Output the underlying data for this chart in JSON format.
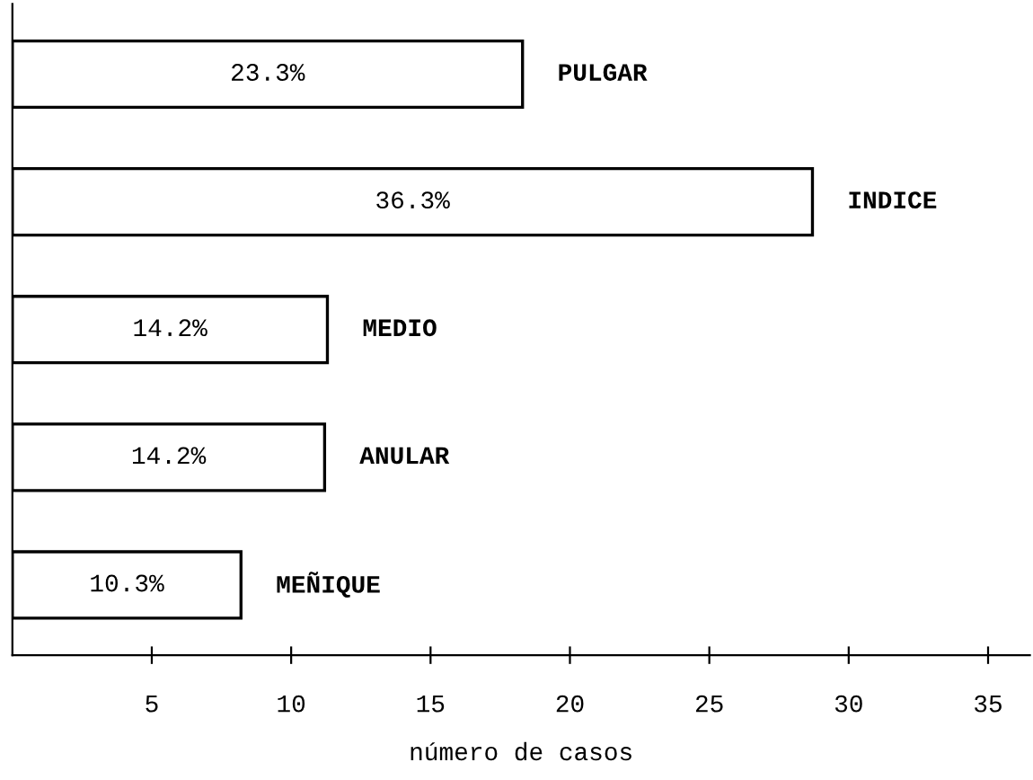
{
  "chart_data": {
    "type": "bar",
    "orientation": "horizontal",
    "xlabel": "número de casos",
    "categories": [
      "PULGAR",
      "INDICE",
      "MEDIO",
      "ANULAR",
      "MEÑIQUE"
    ],
    "values": [
      18.3,
      28.7,
      11.3,
      11.2,
      8.2
    ],
    "annotations": [
      "23.3%",
      "36.3%",
      "14.2%",
      "14.2%",
      "10.3%"
    ],
    "color": "#ffffff",
    "xlim": [
      0,
      36.5
    ],
    "xticks": [
      5,
      10,
      15,
      20,
      25,
      30,
      35
    ],
    "tick_labels": "x",
    "grid": false,
    "legend": false
  }
}
